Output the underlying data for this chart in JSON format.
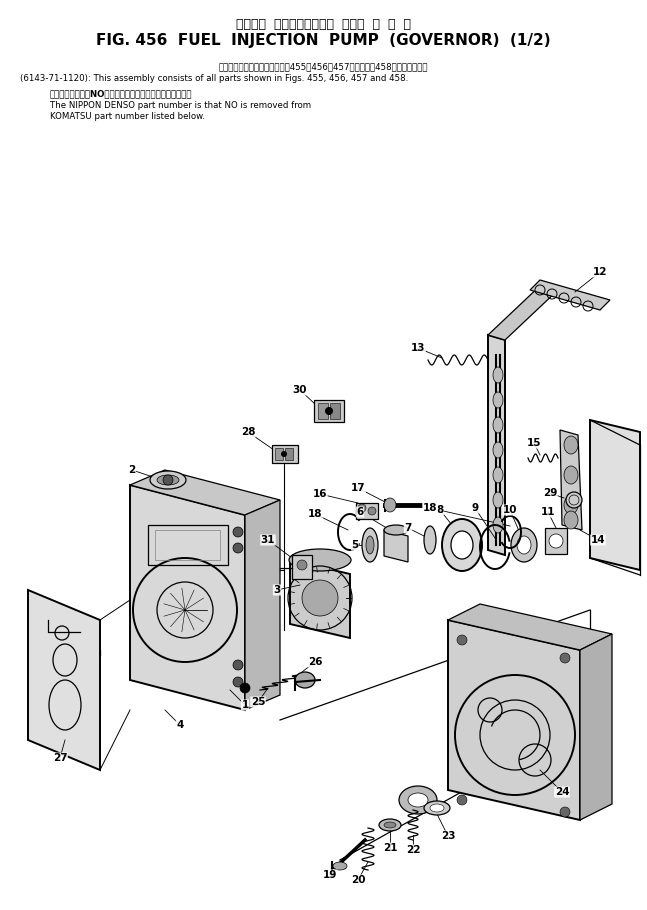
{
  "title_jp": "フェエル  インジェクション  ポンプ  ガ  バ  ナ",
  "title_en": "FIG. 456  FUEL  INJECTION  PUMP  (GOVERNOR)  (1/2)",
  "note1_jp": "このアセンブリの構成部品は図455、456、457図および図458図を含みます。",
  "note1_en": "(6143-71-1120): This assembly consists of all parts shown in Figs. 455, 456, 457 and 458.",
  "note2_jp_bold": "当該メーカー形式NOを入力したものが日本廣の品番です。",
  "note2_en_line1": "The NIPPON DENSO part number is that NO is removed from",
  "note2_en_line2": "KOMATSU part number listed below.",
  "bg_color": "#ffffff",
  "fg_color": "#000000"
}
